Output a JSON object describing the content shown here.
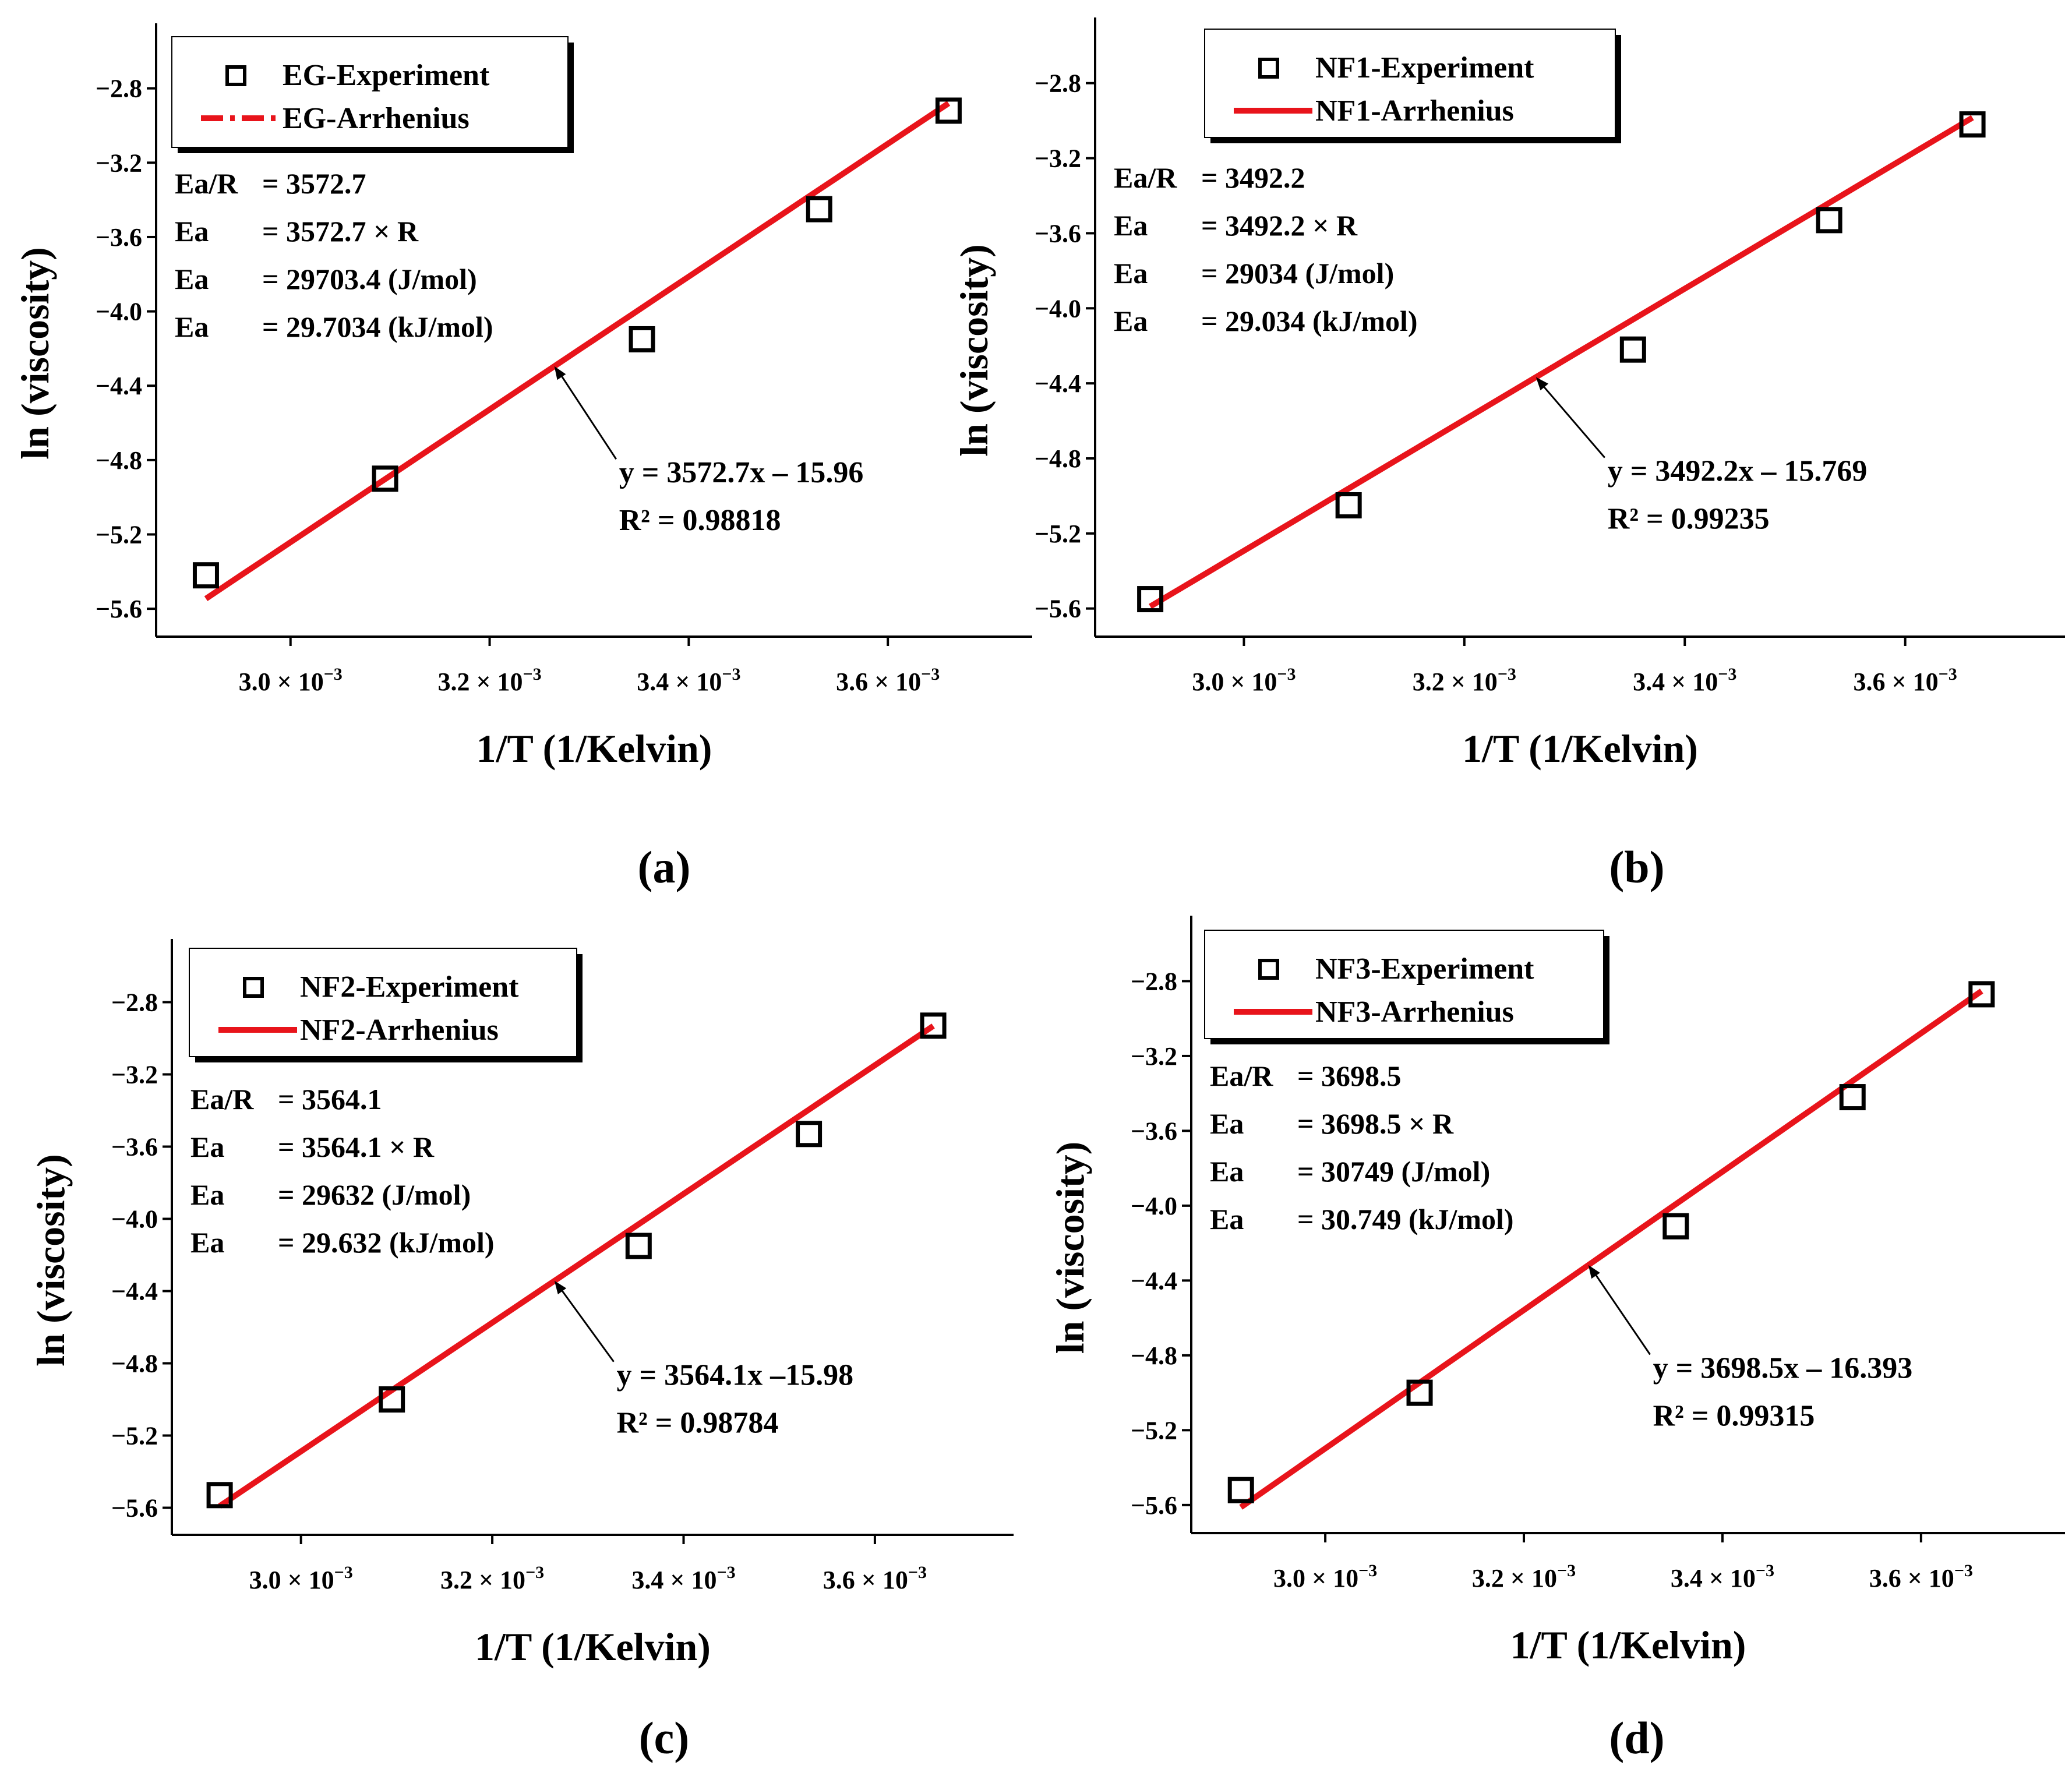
{
  "figure": {
    "panels": [
      "a",
      "b",
      "c",
      "d"
    ]
  },
  "colors": {
    "fit_line": "#e8141b",
    "marker": "#000000",
    "axis": "#000000",
    "legend_shadow": "#000000"
  },
  "chart_data": [
    {
      "type": "scatter",
      "panel_label": "(a)",
      "xlabel": "1/T (1/Kelvin)",
      "ylabel": "ln (viscosity)",
      "xlim": [
        0.002865,
        0.003745
      ],
      "ylim": [
        -5.75,
        -2.45
      ],
      "xticks": [
        0.003,
        0.0032,
        0.0034,
        0.0036
      ],
      "xtick_labels": [
        {
          "mantissa": "3.0",
          "sup": "−3"
        },
        {
          "mantissa": "3.2",
          "sup": "−3"
        },
        {
          "mantissa": "3.4",
          "sup": "−3"
        },
        {
          "mantissa": "3.6",
          "sup": "−3"
        }
      ],
      "yticks": [
        -2.8,
        -3.2,
        -3.6,
        -4.0,
        -4.4,
        -4.8,
        -5.2,
        -5.6
      ],
      "ytick_labels": [
        "−2.8",
        "−3.2",
        "−3.6",
        "−4.0",
        "−4.4",
        "−4.8",
        "−5.2",
        "−5.6"
      ],
      "series": [
        {
          "name": "EG-Experiment",
          "kind": "markers",
          "x": [
            0.002915,
            0.003095,
            0.003353,
            0.003531,
            0.003661
          ],
          "y": [
            -5.42,
            -4.9,
            -4.15,
            -3.45,
            -2.92
          ]
        },
        {
          "name": "EG-Arrhenius",
          "kind": "fit",
          "slope": 3572.7,
          "intercept": -15.96,
          "x_range": [
            0.002915,
            0.003661
          ]
        }
      ],
      "legend": [
        "EG-Experiment",
        "EG-Arrhenius"
      ],
      "legend_line_style": "dashdot",
      "info_lines": [
        {
          "lhs": "Ea/R",
          "rhs": "= 3572.7"
        },
        {
          "lhs": "Ea",
          "rhs": "= 3572.7 × R"
        },
        {
          "lhs": "Ea",
          "rhs": "= 29703.4 (J/mol)"
        },
        {
          "lhs": "Ea",
          "rhs": "= 29.7034 (kJ/mol)"
        }
      ],
      "equation": "y = 3572.7x – 15.96",
      "r2": "R² = 0.98818"
    },
    {
      "type": "scatter",
      "panel_label": "(b)",
      "xlabel": "1/T (1/Kelvin)",
      "ylabel": "ln (viscosity)",
      "xlim": [
        0.002865,
        0.003745
      ],
      "ylim": [
        -5.75,
        -2.45
      ],
      "xticks": [
        0.003,
        0.0032,
        0.0034,
        0.0036
      ],
      "xtick_labels": [
        {
          "mantissa": "3.0",
          "sup": "−3"
        },
        {
          "mantissa": "3.2",
          "sup": "−3"
        },
        {
          "mantissa": "3.4",
          "sup": "−3"
        },
        {
          "mantissa": "3.6",
          "sup": "−3"
        }
      ],
      "yticks": [
        -2.8,
        -3.2,
        -3.6,
        -4.0,
        -4.4,
        -4.8,
        -5.2,
        -5.6
      ],
      "ytick_labels": [
        "−2.8",
        "−3.2",
        "−3.6",
        "−4.0",
        "−4.4",
        "−4.8",
        "−5.2",
        "−5.6"
      ],
      "series": [
        {
          "name": "NF1-Experiment",
          "kind": "markers",
          "x": [
            0.002915,
            0.003095,
            0.003353,
            0.003531,
            0.003661
          ],
          "y": [
            -5.55,
            -5.05,
            -4.22,
            -3.53,
            -3.02
          ]
        },
        {
          "name": "NF1-Arrhenius",
          "kind": "fit",
          "slope": 3492.2,
          "intercept": -15.769,
          "x_range": [
            0.002915,
            0.003661
          ]
        }
      ],
      "legend": [
        "NF1-Experiment",
        "NF1-Arrhenius"
      ],
      "legend_line_style": "solid",
      "info_lines": [
        {
          "lhs": "Ea/R",
          "rhs": "= 3492.2"
        },
        {
          "lhs": "Ea",
          "rhs": "= 3492.2 × R"
        },
        {
          "lhs": "Ea",
          "rhs": "= 29034  (J/mol)"
        },
        {
          "lhs": "Ea",
          "rhs": "= 29.034  (kJ/mol)"
        }
      ],
      "equation": "y = 3492.2x – 15.769",
      "r2": "R² = 0.99235"
    },
    {
      "type": "scatter",
      "panel_label": "(c)",
      "xlabel": "1/T (1/Kelvin)",
      "ylabel": "ln (viscosity)",
      "xlim": [
        0.002865,
        0.003745
      ],
      "ylim": [
        -5.75,
        -2.45
      ],
      "xticks": [
        0.003,
        0.0032,
        0.0034,
        0.0036
      ],
      "xtick_labels": [
        {
          "mantissa": "3.0",
          "sup": "−3"
        },
        {
          "mantissa": "3.2",
          "sup": "−3"
        },
        {
          "mantissa": "3.4",
          "sup": "−3"
        },
        {
          "mantissa": "3.6",
          "sup": "−3"
        }
      ],
      "yticks": [
        -2.8,
        -3.2,
        -3.6,
        -4.0,
        -4.4,
        -4.8,
        -5.2,
        -5.6
      ],
      "ytick_labels": [
        "−2.8",
        "−3.2",
        "−3.6",
        "−4.0",
        "−4.4",
        "−4.8",
        "−5.2",
        "−5.6"
      ],
      "series": [
        {
          "name": "NF2-Experiment",
          "kind": "markers",
          "x": [
            0.002915,
            0.003095,
            0.003353,
            0.003531,
            0.003661
          ],
          "y": [
            -5.53,
            -5.0,
            -4.15,
            -3.53,
            -2.93
          ]
        },
        {
          "name": "NF2-Arrhenius",
          "kind": "fit",
          "slope": 3564.1,
          "intercept": -15.98,
          "x_range": [
            0.002915,
            0.003661
          ]
        }
      ],
      "legend": [
        "NF2-Experiment",
        "NF2-Arrhenius"
      ],
      "legend_line_style": "solid",
      "info_lines": [
        {
          "lhs": "Ea/R",
          "rhs": "= 3564.1"
        },
        {
          "lhs": "Ea",
          "rhs": "= 3564.1 × R"
        },
        {
          "lhs": "Ea",
          "rhs": "= 29632  (J/mol)"
        },
        {
          "lhs": "Ea",
          "rhs": "= 29.632  (kJ/mol)"
        }
      ],
      "equation": "y = 3564.1x  –15.98",
      "r2": "R² = 0.98784"
    },
    {
      "type": "scatter",
      "panel_label": "(d)",
      "xlabel": "1/T (1/Kelvin)",
      "ylabel": "ln (viscosity)",
      "xlim": [
        0.002865,
        0.003745
      ],
      "ylim": [
        -5.75,
        -2.45
      ],
      "xticks": [
        0.003,
        0.0032,
        0.0034,
        0.0036
      ],
      "xtick_labels": [
        {
          "mantissa": "3.0",
          "sup": "−3"
        },
        {
          "mantissa": "3.2",
          "sup": "−3"
        },
        {
          "mantissa": "3.4",
          "sup": "−3"
        },
        {
          "mantissa": "3.6",
          "sup": "−3"
        }
      ],
      "yticks": [
        -2.8,
        -3.2,
        -3.6,
        -4.0,
        -4.4,
        -4.8,
        -5.2,
        -5.6
      ],
      "ytick_labels": [
        "−2.8",
        "−3.2",
        "−3.6",
        "−4.0",
        "−4.4",
        "−4.8",
        "−5.2",
        "−5.6"
      ],
      "series": [
        {
          "name": "NF3-Experiment",
          "kind": "markers",
          "x": [
            0.002915,
            0.003095,
            0.003353,
            0.003531,
            0.003661
          ],
          "y": [
            -5.52,
            -5.0,
            -4.11,
            -3.42,
            -2.87
          ]
        },
        {
          "name": "NF3-Arrhenius",
          "kind": "fit",
          "slope": 3698.5,
          "intercept": -16.393,
          "x_range": [
            0.002915,
            0.003661
          ]
        }
      ],
      "legend": [
        "NF3-Experiment",
        "NF3-Arrhenius"
      ],
      "legend_line_style": "solid",
      "info_lines": [
        {
          "lhs": "Ea/R",
          "rhs": "= 3698.5"
        },
        {
          "lhs": "Ea",
          "rhs": "= 3698.5 × R"
        },
        {
          "lhs": "Ea",
          "rhs": "= 30749  (J/mol)"
        },
        {
          "lhs": "Ea",
          "rhs": "= 30.749  (kJ/mol)"
        }
      ],
      "equation": "y = 3698.5x  – 16.393",
      "r2": "R² = 0.99315"
    }
  ]
}
